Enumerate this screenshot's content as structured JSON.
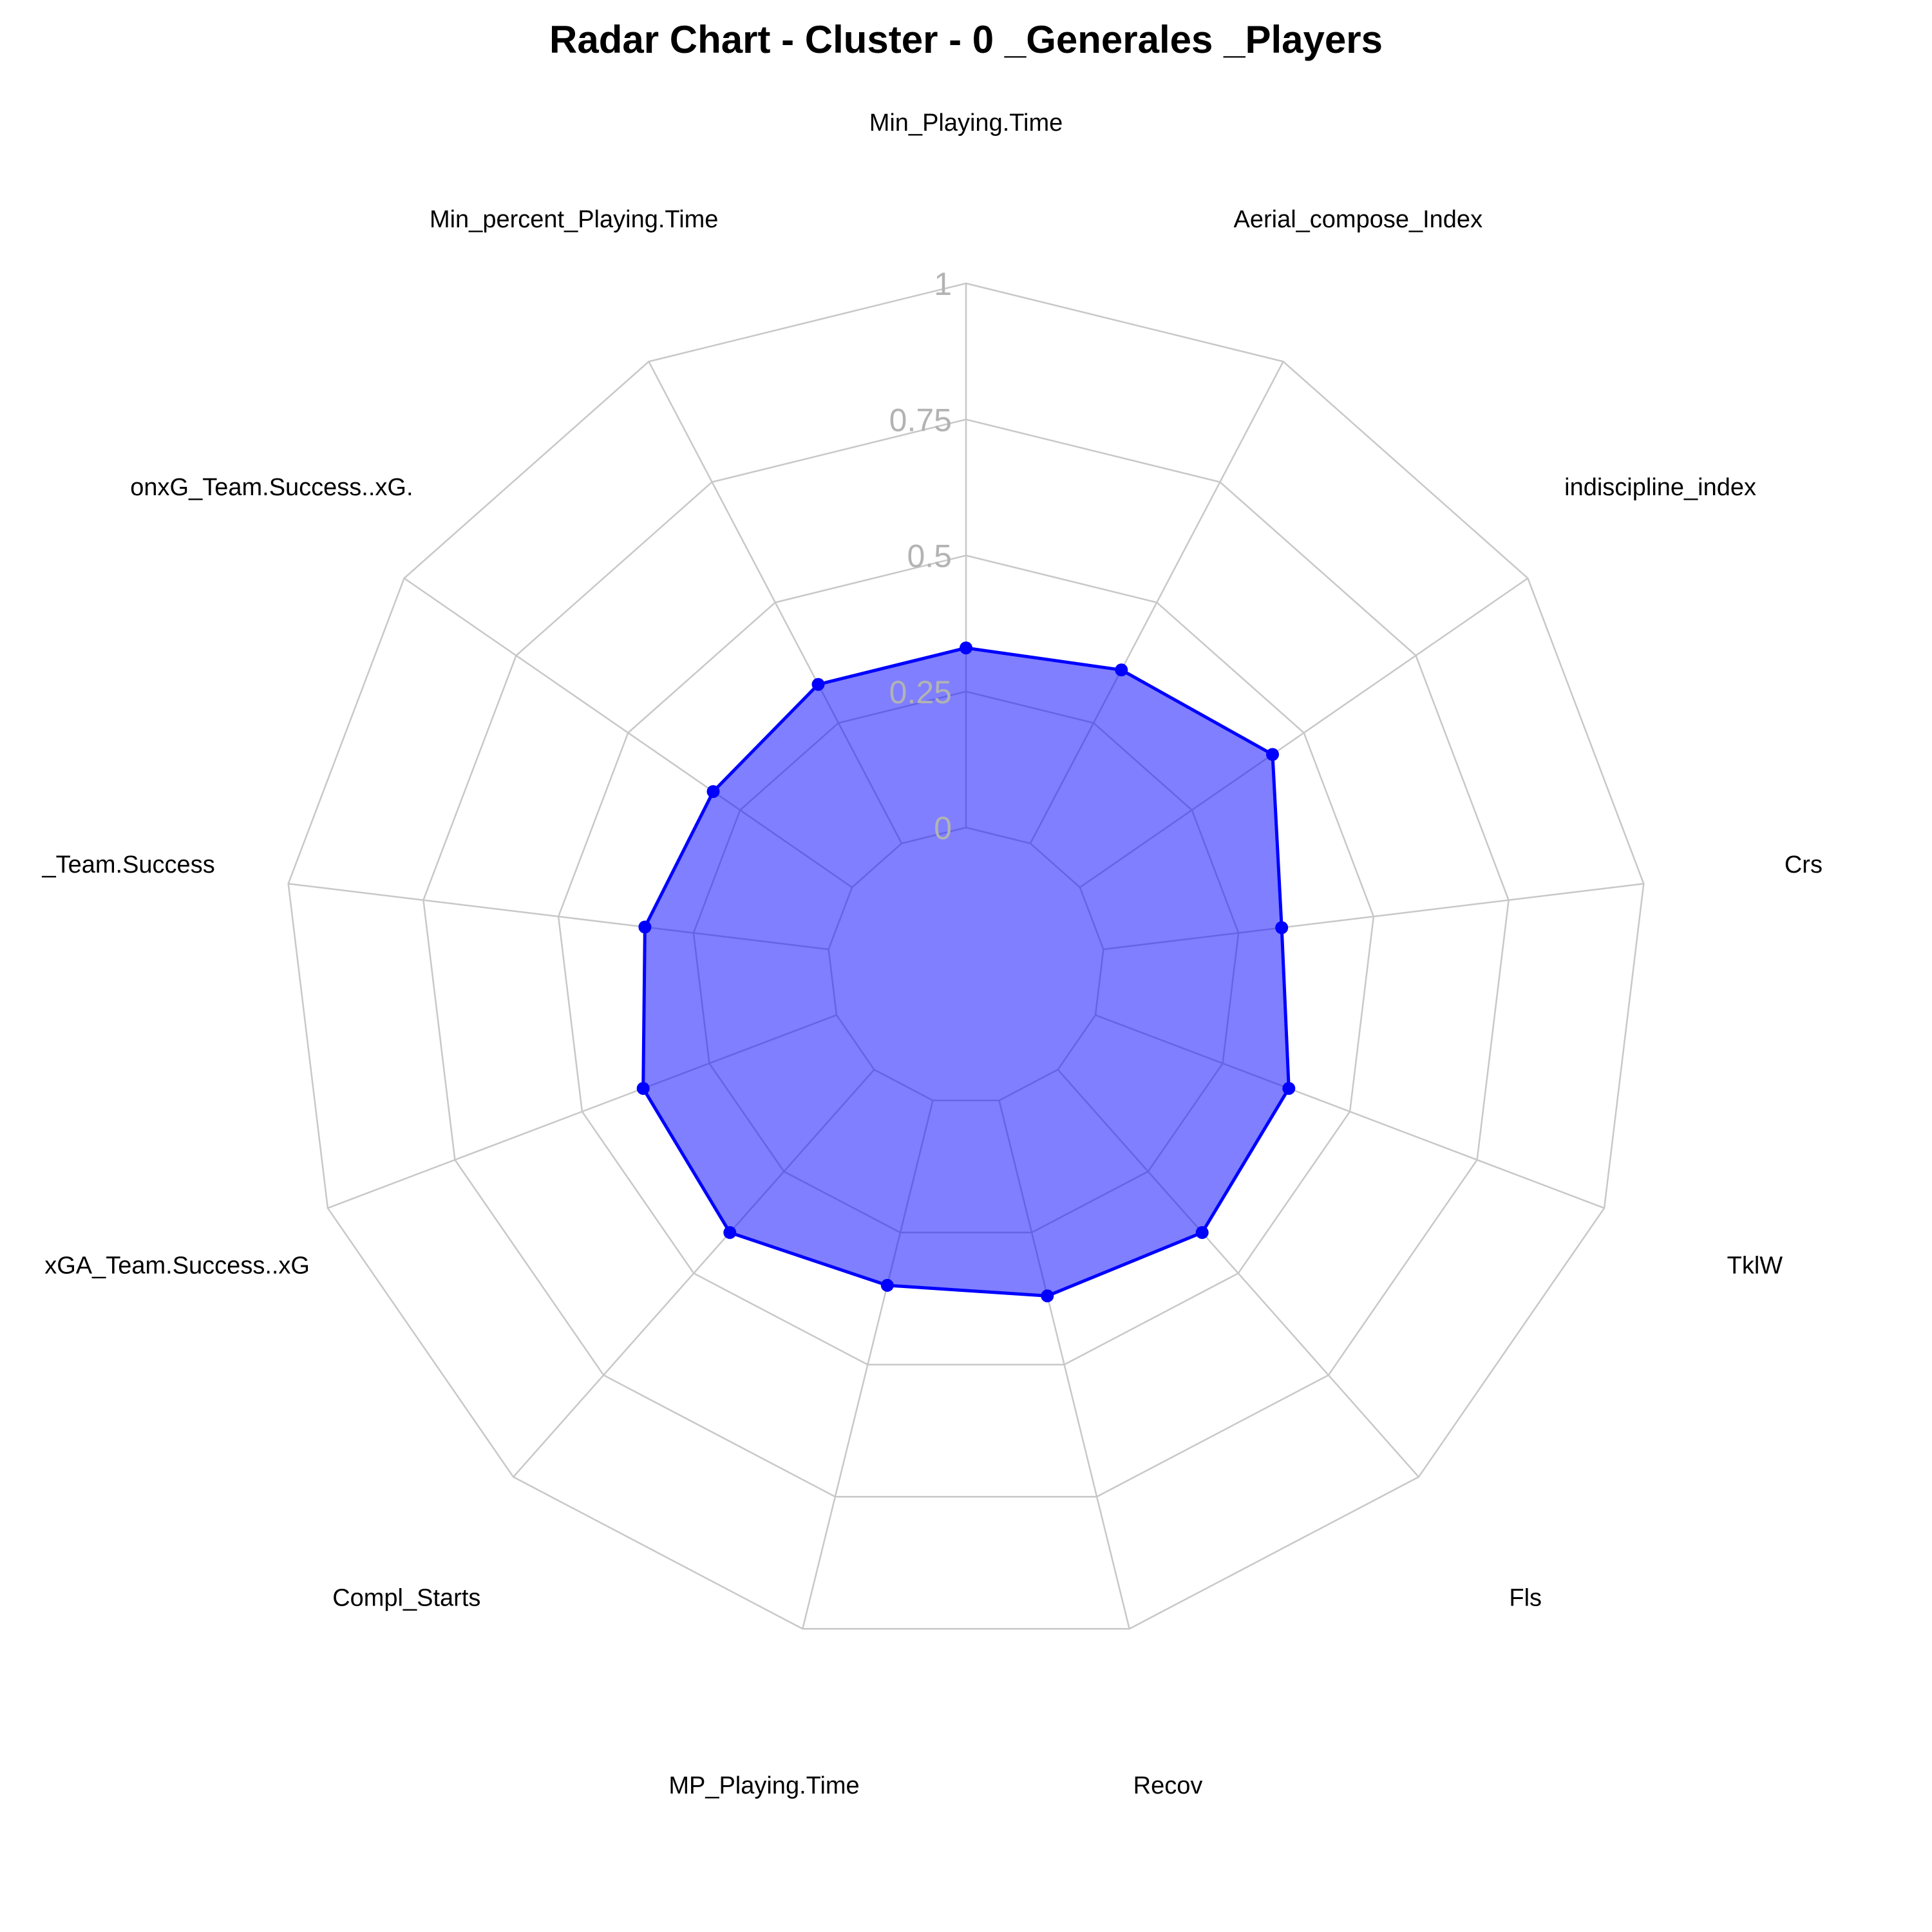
{
  "chart_data": {
    "type": "radar",
    "title": "Radar Chart - Cluster - 0 _Generales _Players",
    "axes": [
      "Min_Playing.Time",
      "Aerial_compose_Index",
      "indiscipline_index",
      "Crs",
      "TklW",
      "Fls",
      "Recov",
      "MP_Playing.Time",
      "Compl_Starts",
      "xGA_Team.Success..xG",
      "G_Team.Success",
      "onxG_Team.Success..xG.",
      "Min_percent_Playing.Time"
    ],
    "axis_label_visible_text": [
      "Min_Playing.Time",
      "Aerial_compose_Index",
      "indiscipline_index",
      "Crs",
      "TklW",
      "Fls",
      "Recov",
      "MP_Playing.Time",
      "Compl_Starts",
      "xGA_Team.Success..xG",
      "_Team.Success",
      "onxG_Team.Success..xG.",
      "Min_percent_Playing.Time"
    ],
    "series": [
      {
        "values": [
          0.33,
          0.36,
          0.43,
          0.33,
          0.38,
          0.4,
          0.37,
          0.35,
          0.4,
          0.38,
          0.34,
          0.31,
          0.33
        ]
      }
    ],
    "scale": [
      0,
      1
    ],
    "ticks": [
      "0",
      "0.25",
      "0.5",
      "0.75",
      "1"
    ],
    "grid": true,
    "legend": "none",
    "colors": {
      "series_line": "#0000ff",
      "series_fill": "#0000ff",
      "series_fill_opacity": 0.5,
      "grid": "#c8c8c8",
      "tick_label": "#b3b3b3"
    }
  }
}
